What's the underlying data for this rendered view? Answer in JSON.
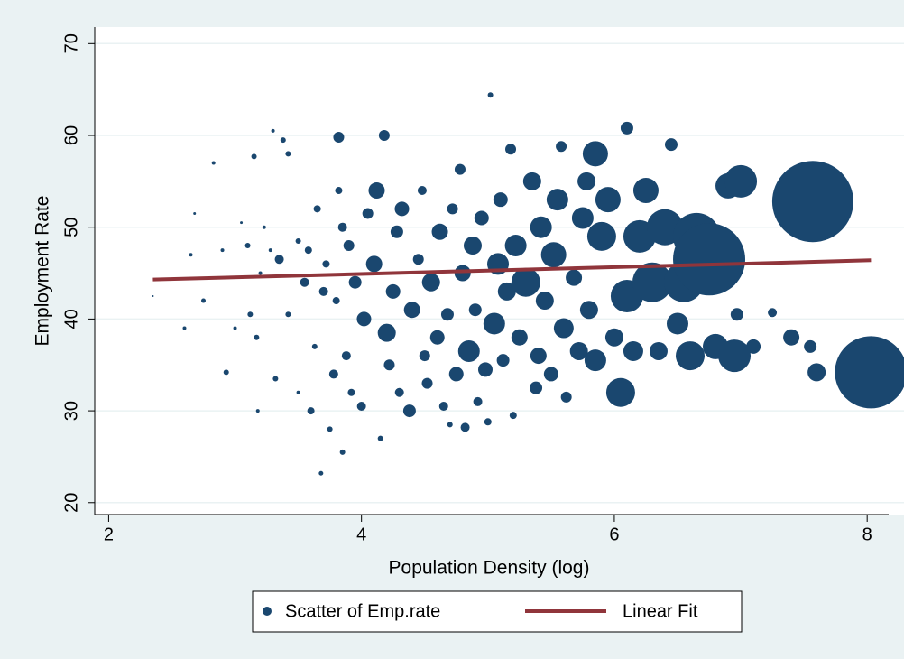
{
  "chart_data": {
    "type": "scatter",
    "x_label": "Population Density (log)",
    "y_label": "Employment Rate",
    "xlim": [
      1.89,
      8.17
    ],
    "ylim": [
      18.7,
      71.8
    ],
    "xticks": [
      2,
      4,
      6,
      8
    ],
    "yticks": [
      20,
      30,
      40,
      50,
      60,
      70
    ],
    "grid": true,
    "legend": "bottom",
    "series": [
      {
        "name": "Scatter of Emp.rate",
        "type": "scatter",
        "color": "#1a476f",
        "x": [
          2.35,
          2.6,
          2.65,
          2.68,
          2.75,
          2.83,
          2.9,
          2.93,
          3.0,
          3.05,
          3.1,
          3.12,
          3.15,
          3.17,
          3.18,
          3.2,
          3.23,
          3.28,
          3.3,
          3.32,
          3.35,
          3.38,
          3.42,
          3.42,
          3.5,
          3.5,
          3.55,
          3.58,
          3.6,
          3.63,
          3.65,
          3.68,
          3.7,
          3.72,
          3.75,
          3.78,
          3.8,
          3.82,
          3.82,
          3.85,
          3.85,
          3.88,
          3.9,
          3.92,
          3.95,
          4.0,
          4.02,
          4.05,
          4.1,
          4.12,
          4.15,
          4.18,
          4.2,
          4.22,
          4.25,
          4.28,
          4.3,
          4.32,
          4.38,
          4.4,
          4.45,
          4.48,
          4.5,
          4.52,
          4.55,
          4.6,
          4.62,
          4.65,
          4.68,
          4.7,
          4.72,
          4.75,
          4.78,
          4.8,
          4.82,
          4.85,
          4.88,
          4.9,
          4.92,
          4.95,
          4.98,
          5.0,
          5.02,
          5.05,
          5.08,
          5.1,
          5.12,
          5.15,
          5.18,
          5.2,
          5.22,
          5.25,
          5.3,
          5.35,
          5.38,
          5.4,
          5.42,
          5.45,
          5.5,
          5.52,
          5.55,
          5.58,
          5.6,
          5.62,
          5.68,
          5.72,
          5.75,
          5.78,
          5.8,
          5.85,
          5.85,
          5.9,
          5.95,
          6.0,
          6.05,
          6.1,
          6.1,
          6.15,
          6.2,
          6.25,
          6.3,
          6.35,
          6.4,
          6.45,
          6.5,
          6.55,
          6.6,
          6.65,
          6.75,
          6.8,
          6.9,
          6.95,
          6.97,
          7.0,
          7.1,
          7.25,
          7.4,
          7.55,
          7.6,
          7.57,
          8.03
        ],
        "y": [
          42.5,
          39,
          47,
          51.5,
          42,
          57,
          47.5,
          34.2,
          39,
          50.5,
          48,
          40.5,
          57.7,
          38,
          30,
          45,
          50,
          47.5,
          60.5,
          33.5,
          46.5,
          59.5,
          58,
          40.5,
          48.5,
          32,
          44,
          47.5,
          30,
          37,
          52,
          23.2,
          43,
          46,
          28,
          34,
          42,
          59.8,
          54,
          25.5,
          50,
          36,
          48,
          32,
          44,
          30.5,
          40,
          51.5,
          46,
          54,
          27,
          60,
          38.5,
          35,
          43,
          49.5,
          32,
          52,
          30,
          41,
          46.5,
          54,
          36,
          33,
          44,
          38,
          49.5,
          30.5,
          40.5,
          28.5,
          52,
          34,
          56.3,
          45,
          28.2,
          36.5,
          48,
          41,
          31,
          51,
          34.5,
          28.8,
          64.4,
          39.5,
          46,
          53,
          35.5,
          43,
          58.5,
          29.5,
          48,
          38,
          44,
          55,
          32.5,
          36,
          50,
          42,
          34,
          47,
          53,
          58.8,
          39,
          31.5,
          44.5,
          36.5,
          51,
          55,
          41,
          35.5,
          58,
          49,
          53,
          38,
          32,
          42.5,
          60.8,
          36.5,
          49,
          54,
          44,
          36.5,
          50,
          59,
          39.5,
          44,
          36,
          49,
          46.5,
          37,
          54.5,
          36,
          40.5,
          55,
          37,
          40.7,
          38,
          37,
          34.2,
          52.8,
          34.2
        ],
        "sizes": [
          1,
          2,
          2,
          1.5,
          2.5,
          2,
          2,
          3,
          2,
          1.5,
          3,
          3,
          3,
          3,
          2,
          2,
          2,
          2,
          2,
          3,
          5,
          3,
          3,
          3,
          3,
          2,
          5,
          4,
          4,
          3,
          4,
          2.5,
          5,
          4,
          3,
          5,
          4,
          6,
          4,
          3,
          5,
          5,
          6,
          4,
          7,
          5,
          8,
          6,
          9,
          9,
          3,
          6,
          10,
          6,
          8,
          7,
          5,
          8,
          7,
          9,
          6,
          5,
          6,
          6,
          10,
          8,
          9,
          5,
          7,
          3,
          6,
          8,
          6,
          9,
          5,
          12,
          10,
          7,
          5,
          8,
          8,
          4,
          3,
          12,
          12,
          8,
          7,
          10,
          6,
          4,
          12,
          9,
          16,
          10,
          7,
          9,
          12,
          10,
          8,
          14,
          12,
          6,
          11,
          6,
          9,
          10,
          12,
          10,
          10,
          12,
          14,
          16,
          14,
          10,
          16,
          18,
          7,
          11,
          18,
          14,
          22,
          10,
          20,
          7,
          12,
          22,
          16,
          26,
          40,
          14,
          14,
          18,
          7,
          18,
          8,
          5,
          9,
          7,
          10,
          45,
          40
        ]
      },
      {
        "name": "Linear Fit",
        "type": "line",
        "color": "#90353b",
        "x": [
          2.35,
          8.03
        ],
        "y": [
          44.3,
          46.4
        ]
      }
    ]
  }
}
